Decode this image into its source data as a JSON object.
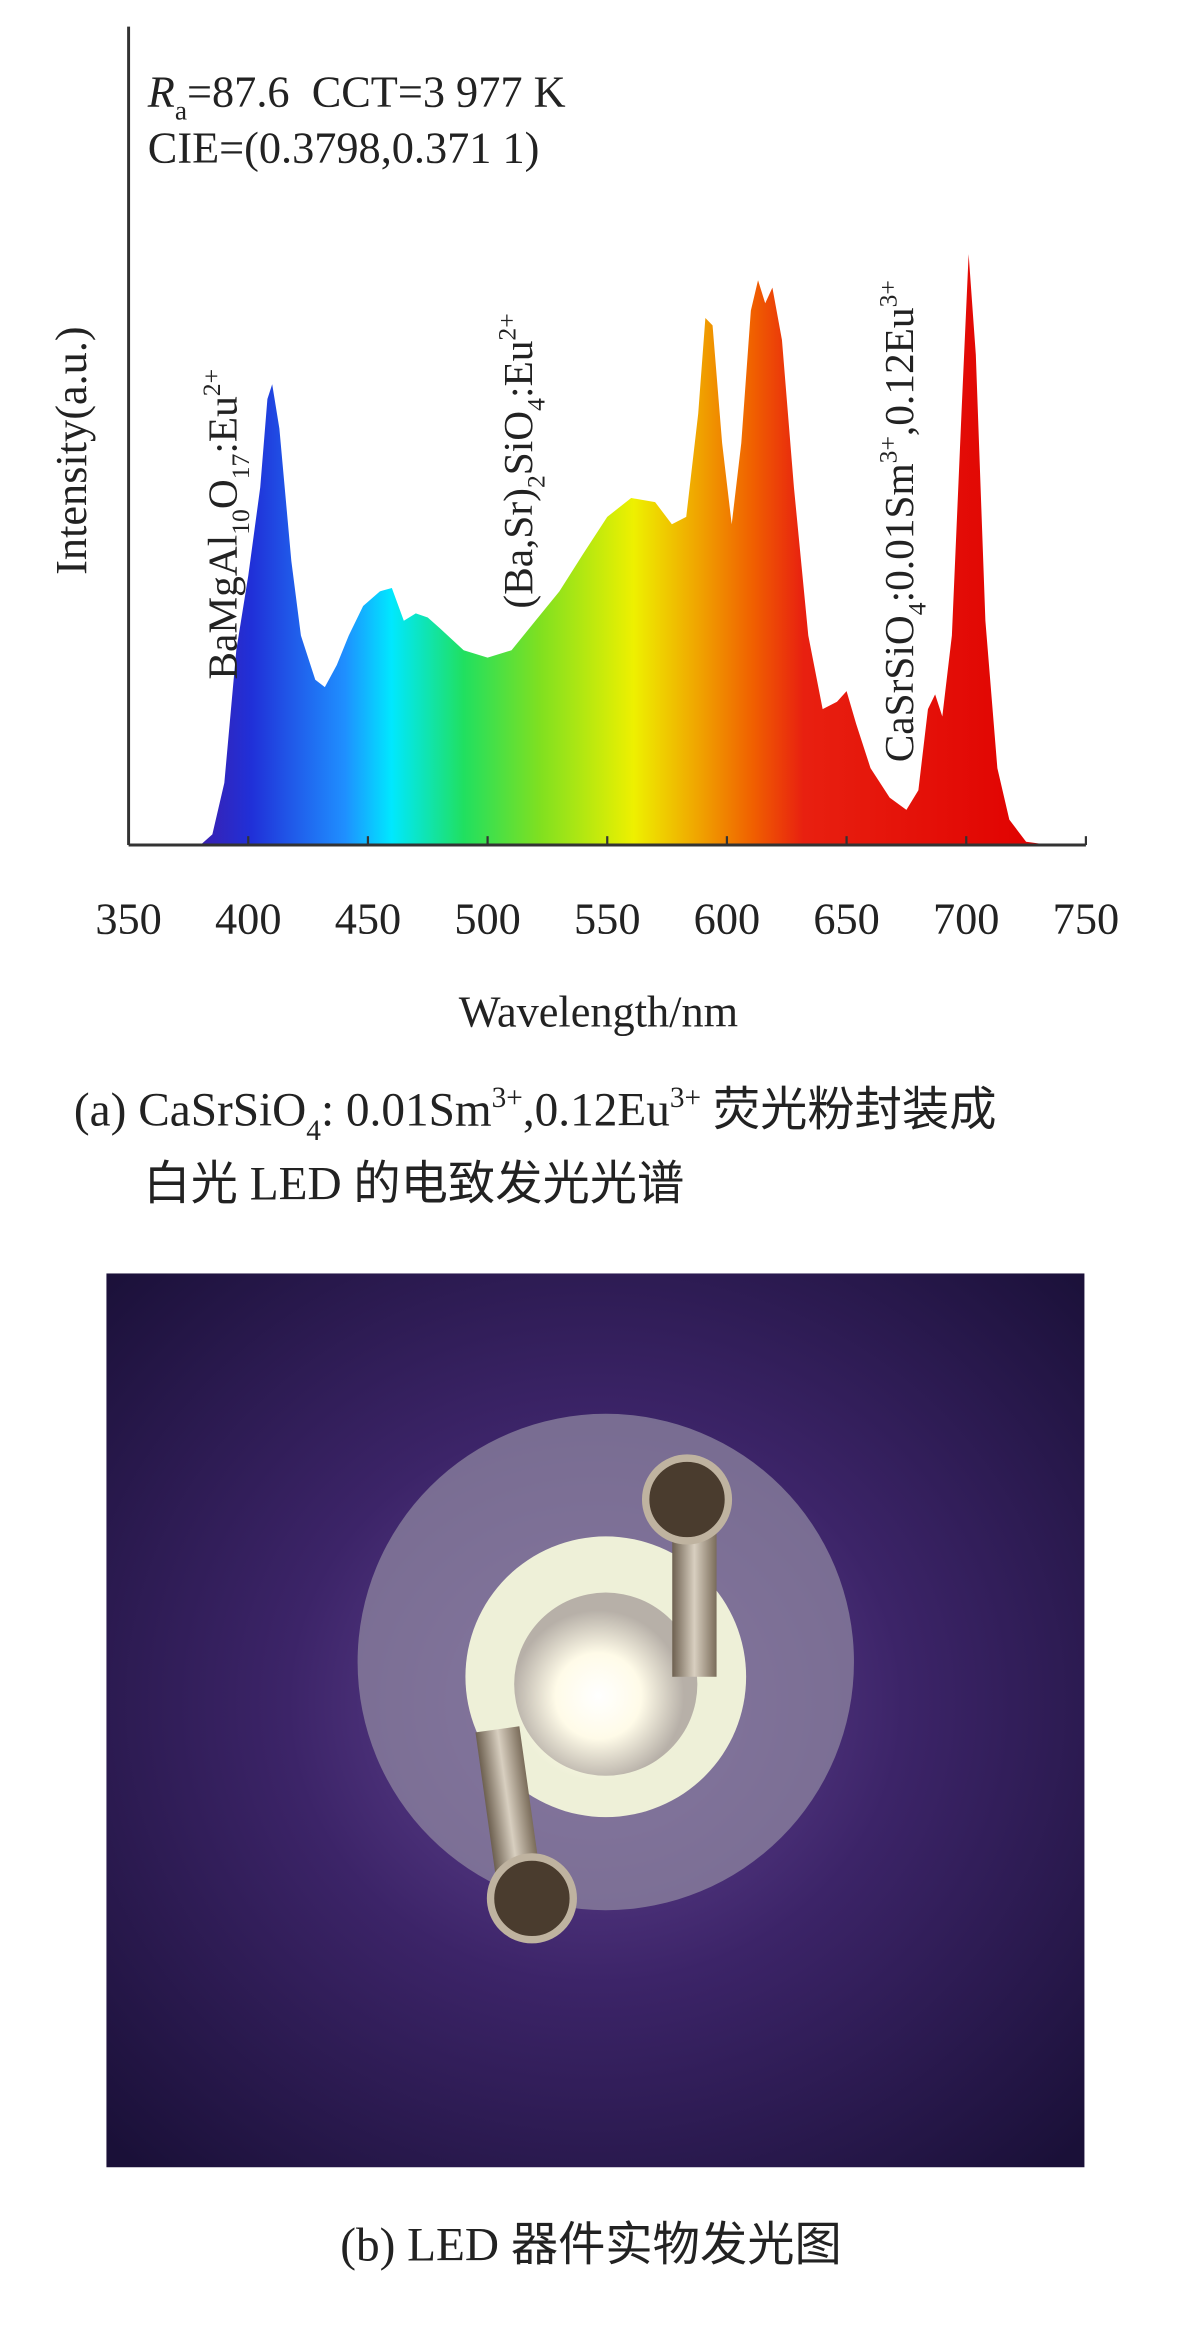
{
  "chart_data": {
    "type": "area",
    "x": [
      380,
      385,
      390,
      395,
      400,
      405,
      408,
      410,
      413,
      418,
      422,
      428,
      432,
      437,
      442,
      448,
      455,
      460,
      465,
      470,
      475,
      480,
      490,
      500,
      510,
      520,
      530,
      540,
      550,
      560,
      570,
      577,
      583,
      588,
      591,
      594,
      598,
      602,
      606,
      610,
      613,
      616,
      619,
      623,
      628,
      634,
      640,
      646,
      650,
      654,
      660,
      668,
      675,
      680,
      684,
      687,
      690,
      694,
      698,
      701,
      704,
      708,
      713,
      718,
      725,
      735
    ],
    "values": [
      0,
      1.3,
      7.6,
      23.8,
      32.9,
      43.7,
      54.5,
      56.3,
      50.9,
      34.7,
      25.6,
      20.2,
      19.3,
      22.0,
      25.6,
      29.2,
      31.0,
      31.4,
      27.4,
      28.3,
      27.8,
      26.5,
      23.8,
      22.9,
      23.8,
      27.4,
      31.0,
      35.6,
      40.1,
      42.4,
      41.9,
      39.2,
      40.1,
      52.7,
      64.4,
      63.5,
      49.1,
      39.2,
      49.1,
      65.3,
      69.0,
      66.2,
      68.1,
      61.7,
      43.7,
      25.6,
      16.6,
      17.5,
      18.8,
      14.8,
      9.4,
      5.8,
      4.3,
      6.7,
      16.6,
      18.4,
      15.7,
      25.6,
      52.7,
      72.2,
      59.9,
      27.4,
      9.4,
      3.1,
      0.4,
      0
    ],
    "xlim": [
      350,
      750
    ],
    "xticks": [
      350,
      400,
      450,
      500,
      550,
      600,
      650,
      700,
      750
    ],
    "ylim": [
      0,
      100
    ],
    "x_label": "Wavelength/nm",
    "y_label": "Intensity(a.u.)",
    "annotations": [
      {
        "runs": [
          {
            "text": "R",
            "style": "italic"
          },
          {
            "text": "a",
            "shift": "sub"
          },
          {
            "text": "=87.6  CCT=3 977 K"
          }
        ]
      },
      {
        "runs": [
          {
            "text": "CIE=(0.3798,0.371 1)"
          }
        ]
      },
      {
        "runs": [
          {
            "text": "BaMgAl"
          },
          {
            "text": "10",
            "shift": "sub"
          },
          {
            "text": "O"
          },
          {
            "text": "17",
            "shift": "sub"
          },
          {
            "text": ":Eu"
          },
          {
            "text": "2+",
            "shift": "sup"
          }
        ]
      },
      {
        "runs": [
          {
            "text": "(Ba,Sr)"
          },
          {
            "text": "2",
            "shift": "sub"
          },
          {
            "text": "SiO"
          },
          {
            "text": "4",
            "shift": "sub"
          },
          {
            "text": ":Eu"
          },
          {
            "text": "2+",
            "shift": "sup"
          }
        ]
      },
      {
        "runs": [
          {
            "text": "CaSrSiO"
          },
          {
            "text": "4",
            "shift": "sub"
          },
          {
            "text": ":0.01Sm"
          },
          {
            "text": "3+",
            "shift": "sup"
          },
          {
            "text": ",0.12Eu"
          },
          {
            "text": "3+",
            "shift": "sup"
          }
        ]
      }
    ]
  },
  "captions": [
    {
      "lines": [
        {
          "runs": [
            {
              "text": "(a) CaSrSiO"
            },
            {
              "text": "4",
              "shift": "sub"
            },
            {
              "text": ": 0.01Sm"
            },
            {
              "text": "3+",
              "shift": "sup"
            },
            {
              "text": ",0.12Eu"
            },
            {
              "text": "3+",
              "shift": "sup"
            },
            {
              "text": " 荧光粉封装成"
            }
          ]
        },
        {
          "runs": [
            {
              "text": "白光 LED 的电致发光光谱"
            }
          ]
        }
      ]
    },
    {
      "lines": [
        {
          "runs": [
            {
              "text": "(b) LED 器件实物发光图"
            }
          ]
        }
      ]
    }
  ]
}
